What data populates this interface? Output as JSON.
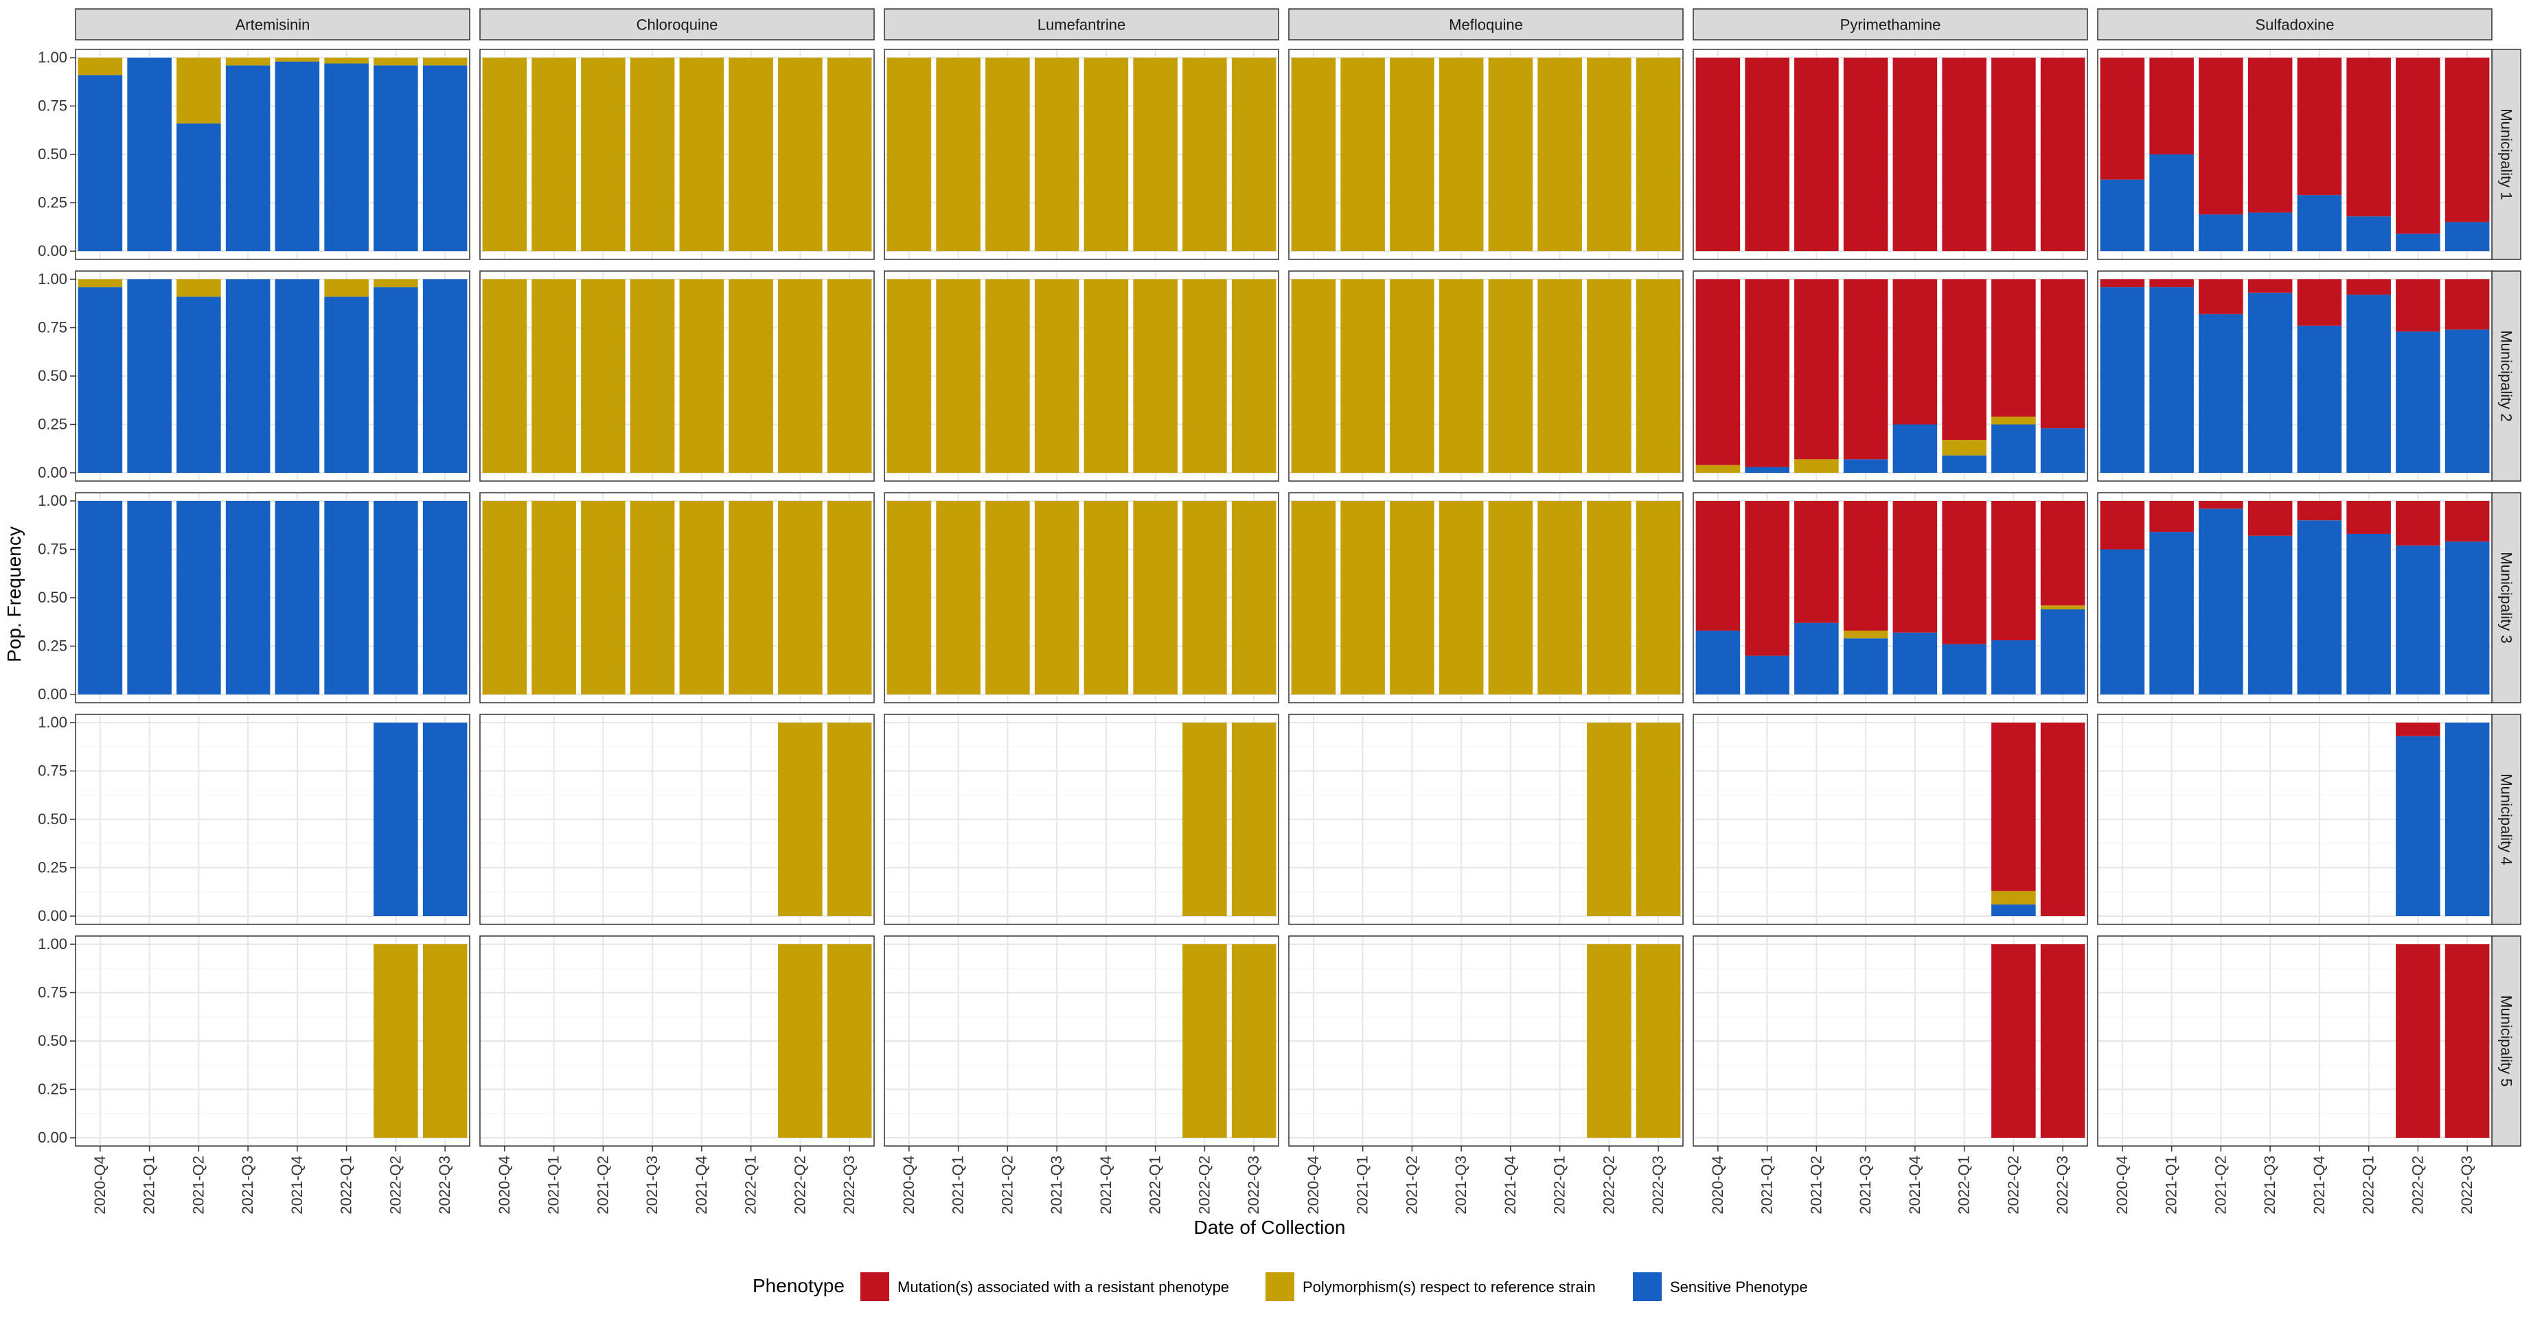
{
  "chart_data": {
    "type": "bar",
    "stacked": true,
    "facet": "grid",
    "xlabel": "Date of Collection",
    "ylabel": "Pop. Frequency",
    "ylim": [
      0,
      1
    ],
    "yticks": [
      "0.00",
      "0.25",
      "0.50",
      "0.75",
      "1.00"
    ],
    "categories": [
      "2020-Q4",
      "2021-Q1",
      "2021-Q2",
      "2021-Q3",
      "2021-Q4",
      "2022-Q1",
      "2022-Q2",
      "2022-Q3"
    ],
    "grid": true,
    "legend": {
      "title": "Phenotype",
      "position": "bottom",
      "entries": [
        {
          "key": "resistant",
          "label": "Mutation(s) associated with a resistant phenotype",
          "color": "#C0121F"
        },
        {
          "key": "polymorphism",
          "label": "Polymorphism(s) respect to reference strain",
          "color": "#C4A006"
        },
        {
          "key": "sensitive",
          "label": "Sensitive Phenotype",
          "color": "#1660C3"
        }
      ]
    },
    "columns": [
      "Artemisinin",
      "Chloroquine",
      "Lumefantrine",
      "Mefloquine",
      "Pyrimethamine",
      "Sulfadoxine"
    ],
    "rows": [
      "Municipality 1",
      "Municipality 2",
      "Municipality 3",
      "Municipality 4",
      "Municipality 5"
    ],
    "stack_order_bottom_to_top": [
      "sensitive",
      "polymorphism",
      "resistant"
    ],
    "panels": {
      "Municipality 1": {
        "Artemisinin": {
          "sensitive": [
            0.91,
            1.0,
            0.66,
            0.96,
            0.98,
            0.97,
            0.96,
            0.96
          ],
          "polymorphism": [
            0.09,
            0.0,
            0.34,
            0.04,
            0.02,
            0.03,
            0.04,
            0.04
          ],
          "resistant": [
            0,
            0,
            0,
            0,
            0,
            0,
            0,
            0
          ]
        },
        "Chloroquine": {
          "sensitive": [
            0,
            0,
            0,
            0,
            0,
            0,
            0,
            0
          ],
          "polymorphism": [
            1,
            1,
            1,
            1,
            1,
            1,
            1,
            1
          ],
          "resistant": [
            0,
            0,
            0,
            0,
            0,
            0,
            0,
            0
          ]
        },
        "Lumefantrine": {
          "sensitive": [
            0,
            0,
            0,
            0,
            0,
            0,
            0,
            0
          ],
          "polymorphism": [
            1,
            1,
            1,
            1,
            1,
            1,
            1,
            1
          ],
          "resistant": [
            0,
            0,
            0,
            0,
            0,
            0,
            0,
            0
          ]
        },
        "Mefloquine": {
          "sensitive": [
            0,
            0,
            0,
            0,
            0,
            0,
            0,
            0
          ],
          "polymorphism": [
            1,
            1,
            1,
            1,
            1,
            1,
            1,
            1
          ],
          "resistant": [
            0,
            0,
            0,
            0,
            0,
            0,
            0,
            0
          ]
        },
        "Pyrimethamine": {
          "sensitive": [
            0,
            0,
            0,
            0,
            0,
            0,
            0,
            0
          ],
          "polymorphism": [
            0,
            0,
            0,
            0,
            0,
            0,
            0,
            0
          ],
          "resistant": [
            1,
            1,
            1,
            1,
            1,
            1,
            1,
            1
          ]
        },
        "Sulfadoxine": {
          "sensitive": [
            0.37,
            0.5,
            0.19,
            0.2,
            0.29,
            0.18,
            0.09,
            0.15
          ],
          "polymorphism": [
            0,
            0,
            0,
            0,
            0,
            0,
            0,
            0
          ],
          "resistant": [
            0.63,
            0.5,
            0.81,
            0.8,
            0.71,
            0.82,
            0.91,
            0.85
          ]
        }
      },
      "Municipality 2": {
        "Artemisinin": {
          "sensitive": [
            0.96,
            1.0,
            0.91,
            1.0,
            1.0,
            0.91,
            0.96,
            1.0
          ],
          "polymorphism": [
            0.04,
            0.0,
            0.09,
            0.0,
            0.0,
            0.09,
            0.04,
            0.0
          ],
          "resistant": [
            0,
            0,
            0,
            0,
            0,
            0,
            0,
            0
          ]
        },
        "Chloroquine": {
          "sensitive": [
            0,
            0,
            0,
            0,
            0,
            0,
            0,
            0
          ],
          "polymorphism": [
            1,
            1,
            1,
            1,
            1,
            1,
            1,
            1
          ],
          "resistant": [
            0,
            0,
            0,
            0,
            0,
            0,
            0,
            0
          ]
        },
        "Lumefantrine": {
          "sensitive": [
            0,
            0,
            0,
            0,
            0,
            0,
            0,
            0
          ],
          "polymorphism": [
            1,
            1,
            1,
            1,
            1,
            1,
            1,
            1
          ],
          "resistant": [
            0,
            0,
            0,
            0,
            0,
            0,
            0,
            0
          ]
        },
        "Mefloquine": {
          "sensitive": [
            0,
            0,
            0,
            0,
            0,
            0,
            0,
            0
          ],
          "polymorphism": [
            1,
            1,
            1,
            1,
            1,
            1,
            1,
            1
          ],
          "resistant": [
            0,
            0,
            0,
            0,
            0,
            0,
            0,
            0
          ]
        },
        "Pyrimethamine": {
          "sensitive": [
            0.0,
            0.03,
            0.0,
            0.07,
            0.25,
            0.09,
            0.25,
            0.23
          ],
          "polymorphism": [
            0.04,
            0.0,
            0.07,
            0.0,
            0.0,
            0.08,
            0.04,
            0.0
          ],
          "resistant": [
            0.96,
            0.97,
            0.93,
            0.93,
            0.75,
            0.83,
            0.71,
            0.77
          ]
        },
        "Sulfadoxine": {
          "sensitive": [
            0.96,
            0.96,
            0.82,
            0.93,
            0.76,
            0.92,
            0.73,
            0.74
          ],
          "polymorphism": [
            0,
            0,
            0,
            0,
            0,
            0,
            0,
            0
          ],
          "resistant": [
            0.04,
            0.04,
            0.18,
            0.07,
            0.24,
            0.08,
            0.27,
            0.26
          ]
        }
      },
      "Municipality 3": {
        "Artemisinin": {
          "sensitive": [
            1,
            1,
            1,
            1,
            1,
            1,
            1,
            1
          ],
          "polymorphism": [
            0,
            0,
            0,
            0,
            0,
            0,
            0,
            0
          ],
          "resistant": [
            0,
            0,
            0,
            0,
            0,
            0,
            0,
            0
          ]
        },
        "Chloroquine": {
          "sensitive": [
            0,
            0,
            0,
            0,
            0,
            0,
            0,
            0
          ],
          "polymorphism": [
            1,
            1,
            1,
            1,
            1,
            1,
            1,
            1
          ],
          "resistant": [
            0,
            0,
            0,
            0,
            0,
            0,
            0,
            0
          ]
        },
        "Lumefantrine": {
          "sensitive": [
            0,
            0,
            0,
            0,
            0,
            0,
            0,
            0
          ],
          "polymorphism": [
            1,
            1,
            1,
            1,
            1,
            1,
            1,
            1
          ],
          "resistant": [
            0,
            0,
            0,
            0,
            0,
            0,
            0,
            0
          ]
        },
        "Mefloquine": {
          "sensitive": [
            0,
            0,
            0,
            0,
            0,
            0,
            0,
            0
          ],
          "polymorphism": [
            1,
            1,
            1,
            1,
            1,
            1,
            1,
            1
          ],
          "resistant": [
            0,
            0,
            0,
            0,
            0,
            0,
            0,
            0
          ]
        },
        "Pyrimethamine": {
          "sensitive": [
            0.33,
            0.2,
            0.37,
            0.29,
            0.32,
            0.26,
            0.28,
            0.44
          ],
          "polymorphism": [
            0.0,
            0.0,
            0.0,
            0.04,
            0.0,
            0.0,
            0.0,
            0.02
          ],
          "resistant": [
            0.67,
            0.8,
            0.63,
            0.67,
            0.68,
            0.74,
            0.72,
            0.54
          ]
        },
        "Sulfadoxine": {
          "sensitive": [
            0.75,
            0.84,
            0.96,
            0.82,
            0.9,
            0.83,
            0.77,
            0.79
          ],
          "polymorphism": [
            0,
            0,
            0,
            0,
            0,
            0,
            0,
            0
          ],
          "resistant": [
            0.25,
            0.16,
            0.04,
            0.18,
            0.1,
            0.17,
            0.23,
            0.21
          ]
        }
      },
      "Municipality 4": {
        "Artemisinin": {
          "sensitive": [
            null,
            null,
            null,
            null,
            null,
            null,
            1,
            1
          ],
          "polymorphism": [
            null,
            null,
            null,
            null,
            null,
            null,
            0,
            0
          ],
          "resistant": [
            null,
            null,
            null,
            null,
            null,
            null,
            0,
            0
          ]
        },
        "Chloroquine": {
          "sensitive": [
            null,
            null,
            null,
            null,
            null,
            null,
            0,
            0
          ],
          "polymorphism": [
            null,
            null,
            null,
            null,
            null,
            null,
            1,
            1
          ],
          "resistant": [
            null,
            null,
            null,
            null,
            null,
            null,
            0,
            0
          ]
        },
        "Lumefantrine": {
          "sensitive": [
            null,
            null,
            null,
            null,
            null,
            null,
            0,
            0
          ],
          "polymorphism": [
            null,
            null,
            null,
            null,
            null,
            null,
            1,
            1
          ],
          "resistant": [
            null,
            null,
            null,
            null,
            null,
            null,
            0,
            0
          ]
        },
        "Mefloquine": {
          "sensitive": [
            null,
            null,
            null,
            null,
            null,
            null,
            0,
            0
          ],
          "polymorphism": [
            null,
            null,
            null,
            null,
            null,
            null,
            1,
            1
          ],
          "resistant": [
            null,
            null,
            null,
            null,
            null,
            null,
            0,
            0
          ]
        },
        "Pyrimethamine": {
          "sensitive": [
            null,
            null,
            null,
            null,
            null,
            null,
            0.06,
            0
          ],
          "polymorphism": [
            null,
            null,
            null,
            null,
            null,
            null,
            0.07,
            0
          ],
          "resistant": [
            null,
            null,
            null,
            null,
            null,
            null,
            0.87,
            1
          ]
        },
        "Sulfadoxine": {
          "sensitive": [
            null,
            null,
            null,
            null,
            null,
            null,
            0.93,
            1
          ],
          "polymorphism": [
            null,
            null,
            null,
            null,
            null,
            null,
            0,
            0
          ],
          "resistant": [
            null,
            null,
            null,
            null,
            null,
            null,
            0.07,
            0
          ]
        }
      },
      "Municipality 5": {
        "Artemisinin": {
          "sensitive": [
            null,
            null,
            null,
            null,
            null,
            null,
            0,
            0
          ],
          "polymorphism": [
            null,
            null,
            null,
            null,
            null,
            null,
            1,
            1
          ],
          "resistant": [
            null,
            null,
            null,
            null,
            null,
            null,
            0,
            0
          ]
        },
        "Chloroquine": {
          "sensitive": [
            null,
            null,
            null,
            null,
            null,
            null,
            0,
            0
          ],
          "polymorphism": [
            null,
            null,
            null,
            null,
            null,
            null,
            1,
            1
          ],
          "resistant": [
            null,
            null,
            null,
            null,
            null,
            null,
            0,
            0
          ]
        },
        "Lumefantrine": {
          "sensitive": [
            null,
            null,
            null,
            null,
            null,
            null,
            0,
            0
          ],
          "polymorphism": [
            null,
            null,
            null,
            null,
            null,
            null,
            1,
            1
          ],
          "resistant": [
            null,
            null,
            null,
            null,
            null,
            null,
            0,
            0
          ]
        },
        "Mefloquine": {
          "sensitive": [
            null,
            null,
            null,
            null,
            null,
            null,
            0,
            0
          ],
          "polymorphism": [
            null,
            null,
            null,
            null,
            null,
            null,
            1,
            1
          ],
          "resistant": [
            null,
            null,
            null,
            null,
            null,
            null,
            0,
            0
          ]
        },
        "Pyrimethamine": {
          "sensitive": [
            null,
            null,
            null,
            null,
            null,
            null,
            0,
            0
          ],
          "polymorphism": [
            null,
            null,
            null,
            null,
            null,
            null,
            0,
            0
          ],
          "resistant": [
            null,
            null,
            null,
            null,
            null,
            null,
            1,
            1
          ]
        },
        "Sulfadoxine": {
          "sensitive": [
            null,
            null,
            null,
            null,
            null,
            null,
            0,
            0
          ],
          "polymorphism": [
            null,
            null,
            null,
            null,
            null,
            null,
            0,
            0
          ],
          "resistant": [
            null,
            null,
            null,
            null,
            null,
            null,
            1,
            1
          ]
        }
      }
    }
  }
}
